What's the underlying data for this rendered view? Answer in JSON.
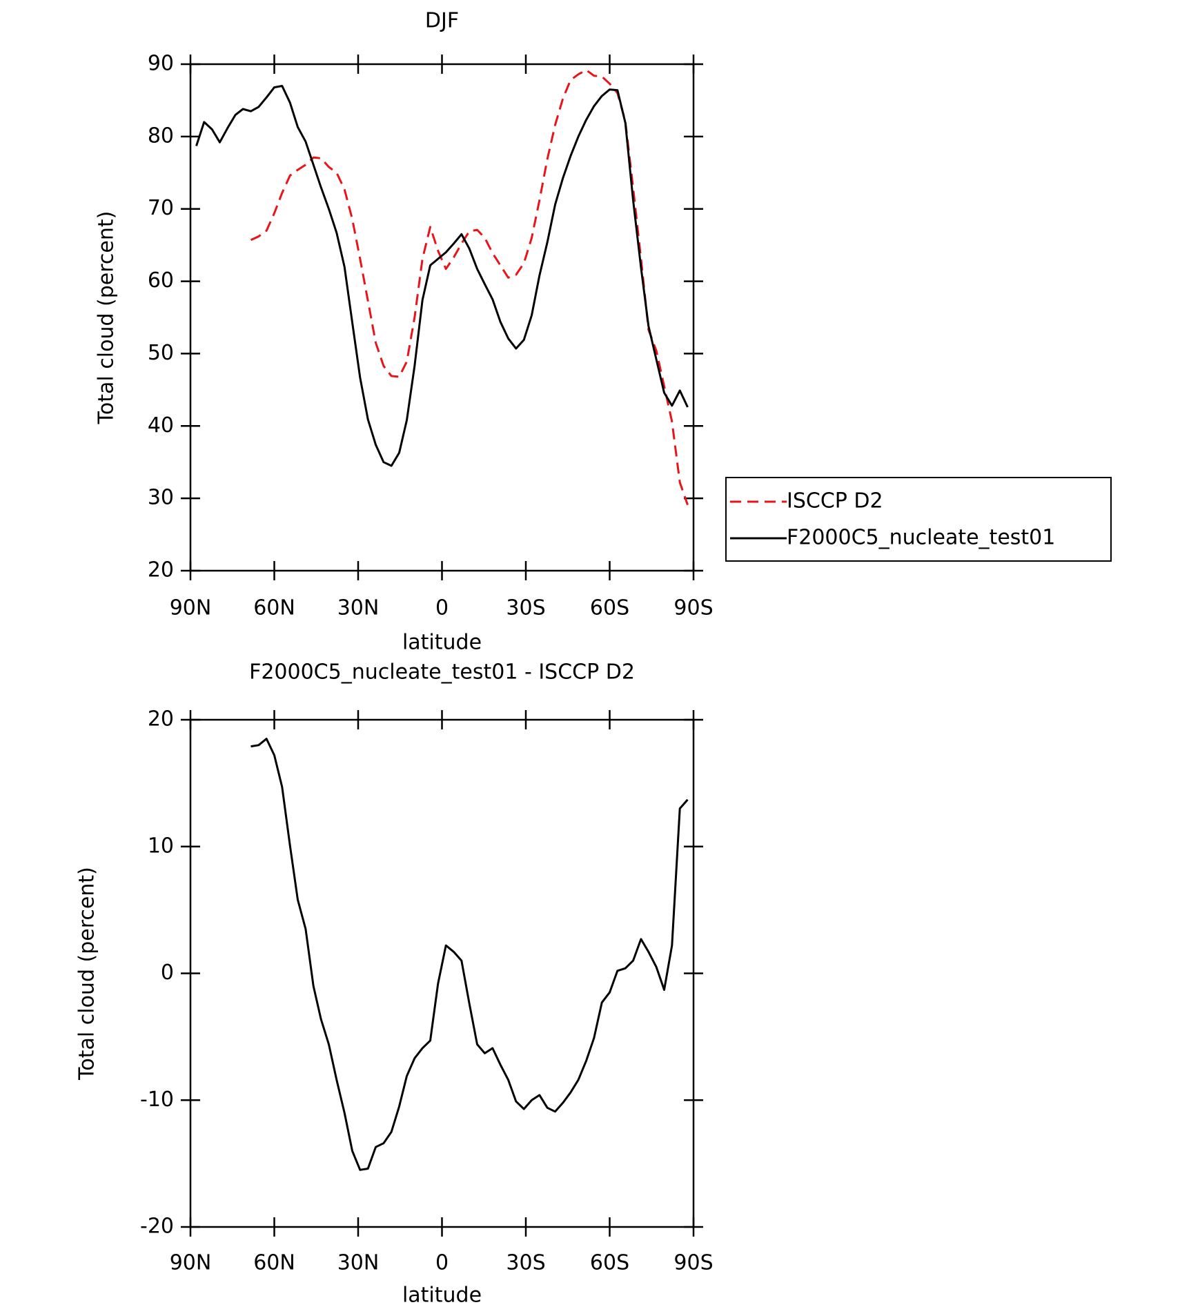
{
  "chart_data": [
    {
      "type": "line",
      "title": "DJF",
      "x_label": "latitude",
      "y_label": "Total cloud (percent)",
      "x": [
        87.9,
        85.1,
        82.3,
        79.5,
        76.7,
        73.9,
        71.2,
        68.4,
        65.6,
        62.8,
        60.0,
        57.2,
        54.4,
        51.6,
        48.8,
        46.0,
        43.3,
        40.5,
        37.7,
        34.9,
        32.1,
        29.3,
        26.5,
        23.7,
        20.9,
        18.1,
        15.3,
        12.6,
        9.8,
        7.0,
        4.2,
        1.4,
        -1.4,
        -4.2,
        -7.0,
        -9.8,
        -12.6,
        -15.3,
        -18.1,
        -20.9,
        -23.7,
        -26.5,
        -29.3,
        -32.1,
        -34.9,
        -37.7,
        -40.5,
        -43.3,
        -46.0,
        -48.8,
        -51.6,
        -54.4,
        -57.2,
        -60.0,
        -62.8,
        -65.6,
        -68.4,
        -71.2,
        -73.9,
        -76.7,
        -79.5,
        -82.3,
        -85.1,
        -87.9
      ],
      "series": [
        {
          "name": "ISCCP D2",
          "color": "#e8141a",
          "dash": true,
          "values": [
            null,
            null,
            null,
            null,
            null,
            null,
            null,
            65.7,
            66.2,
            67,
            69.4,
            72.2,
            74.6,
            75.4,
            76.1,
            77.1,
            77,
            75.8,
            75,
            72.7,
            68.6,
            63.1,
            57.3,
            51.5,
            48.3,
            46.9,
            46.8,
            48.9,
            55,
            63.1,
            67.5,
            64.2,
            61.7,
            63.3,
            65.2,
            66.9,
            67.1,
            66,
            63.9,
            62.2,
            60.5,
            60.9,
            62.5,
            66,
            71.2,
            76.9,
            81.6,
            85.3,
            87.8,
            88.6,
            89.2,
            88.4,
            88.3,
            87.3,
            86,
            82.1,
            72.9,
            63.1,
            53.3,
            50.4,
            45.5,
            40.6,
            32.2,
            29.1
          ]
        },
        {
          "name": "F2000C5_nucleate_test01",
          "color": "#000000",
          "dash": false,
          "values": [
            78.7,
            82,
            81,
            79.2,
            81.2,
            83,
            83.8,
            83.5,
            84.1,
            85.4,
            86.8,
            87,
            84.7,
            81.3,
            79.3,
            76.1,
            73,
            70,
            66.7,
            62,
            54.3,
            46.7,
            40.9,
            37.4,
            35,
            34.5,
            36.3,
            40.8,
            48.3,
            57.4,
            62.2,
            63.1,
            64,
            65.2,
            66.5,
            64.5,
            61.7,
            59.6,
            57.5,
            54.4,
            52.1,
            50.7,
            51.9,
            55.3,
            60.8,
            65.4,
            70.6,
            74.3,
            77.3,
            80,
            82.3,
            84.2,
            85.6,
            86.5,
            86.4,
            81.9,
            71.2,
            61.9,
            53.8,
            49.2,
            44.6,
            42.8,
            44.9,
            42.6
          ]
        }
      ],
      "xlim": [
        90,
        -90
      ],
      "xticks": [
        {
          "value": 90,
          "label": "90N"
        },
        {
          "value": 60,
          "label": "60N"
        },
        {
          "value": 30,
          "label": "30N"
        },
        0,
        {
          "value": -30,
          "label": "30S"
        },
        {
          "value": -60,
          "label": "60S"
        },
        {
          "value": -90,
          "label": "90S"
        }
      ],
      "ylim": [
        20,
        90
      ],
      "yticks": [
        20,
        30,
        40,
        50,
        60,
        70,
        80,
        90
      ],
      "legend": "right"
    },
    {
      "type": "line",
      "title": "F2000C5_nucleate_test01 - ISCCP D2",
      "x_label": "latitude",
      "y_label": "Total cloud (percent)",
      "x": [
        87.9,
        85.1,
        82.3,
        79.5,
        76.7,
        73.9,
        71.2,
        68.4,
        65.6,
        62.8,
        60.0,
        57.2,
        54.4,
        51.6,
        48.8,
        46.0,
        43.3,
        40.5,
        37.7,
        34.9,
        32.1,
        29.3,
        26.5,
        23.7,
        20.9,
        18.1,
        15.3,
        12.6,
        9.8,
        7.0,
        4.2,
        1.4,
        -1.4,
        -4.2,
        -7.0,
        -9.8,
        -12.6,
        -15.3,
        -18.1,
        -20.9,
        -23.7,
        -26.5,
        -29.3,
        -32.1,
        -34.9,
        -37.7,
        -40.5,
        -43.3,
        -46.0,
        -48.8,
        -51.6,
        -54.4,
        -57.2,
        -60.0,
        -62.8,
        -65.6,
        -68.4,
        -71.2,
        -73.9,
        -76.7,
        -79.5,
        -82.3,
        -85.1,
        -87.9
      ],
      "series": [
        {
          "color": "#000000",
          "dash": false,
          "values": [
            null,
            null,
            null,
            null,
            null,
            null,
            null,
            17.9,
            18.0,
            18.5,
            17.2,
            14.7,
            10.1,
            5.8,
            3.5,
            -1.0,
            -3.6,
            -5.6,
            -8.4,
            -11,
            -14,
            -15.5,
            -15.4,
            -13.7,
            -13.4,
            -12.5,
            -10.5,
            -8.1,
            -6.7,
            -5.9,
            -5.3,
            -0.8,
            2.2,
            1.7,
            1.0,
            -2.4,
            -5.6,
            -6.3,
            -5.9,
            -7.2,
            -8.4,
            -10.1,
            -10.7,
            -10.0,
            -9.6,
            -10.6,
            -10.9,
            -10.2,
            -9.4,
            -8.4,
            -6.9,
            -5.1,
            -2.3,
            -1.5,
            0.2,
            0.4,
            1.0,
            2.7,
            1.7,
            0.5,
            -1.3,
            2.2,
            13.0,
            13.7
          ]
        }
      ],
      "xlim": [
        90,
        -90
      ],
      "xticks": [
        {
          "value": 90,
          "label": "90N"
        },
        {
          "value": 60,
          "label": "60N"
        },
        {
          "value": 30,
          "label": "30N"
        },
        0,
        {
          "value": -30,
          "label": "30S"
        },
        {
          "value": -60,
          "label": "60S"
        },
        {
          "value": -90,
          "label": "90S"
        }
      ],
      "ylim": [
        -20,
        20
      ],
      "yticks": [
        -20,
        -10,
        0,
        10,
        20
      ]
    }
  ]
}
